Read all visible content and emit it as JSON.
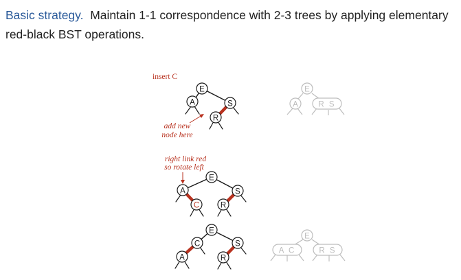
{
  "header": {
    "lead": "Basic strategy.",
    "text": "Maintain 1-1 correspondence with 2-3 trees by applying elementary red-black BST operations."
  },
  "diagram": {
    "step1_label": "insert C",
    "annotation1_line1": "add new",
    "annotation1_line2": "node here",
    "annotation2_line1": "right link red",
    "annotation2_line2": "so rotate left",
    "colors": {
      "red": "#b8321f",
      "header_blue": "#2a5a9a",
      "gray": "#bdbdbd",
      "black": "#1a1a1a"
    },
    "trees": [
      {
        "id": "step1-rb",
        "nodes": [
          "E",
          "A",
          "S",
          "R"
        ]
      },
      {
        "id": "step1-23",
        "nodes": [
          "E",
          "A",
          "R S"
        ]
      },
      {
        "id": "step2-rb",
        "nodes": [
          "E",
          "A",
          "C",
          "S",
          "R"
        ]
      },
      {
        "id": "step3-rb",
        "nodes": [
          "E",
          "C",
          "A",
          "S",
          "R"
        ]
      },
      {
        "id": "step3-23",
        "nodes": [
          "E",
          "A C",
          "R S"
        ]
      }
    ]
  }
}
